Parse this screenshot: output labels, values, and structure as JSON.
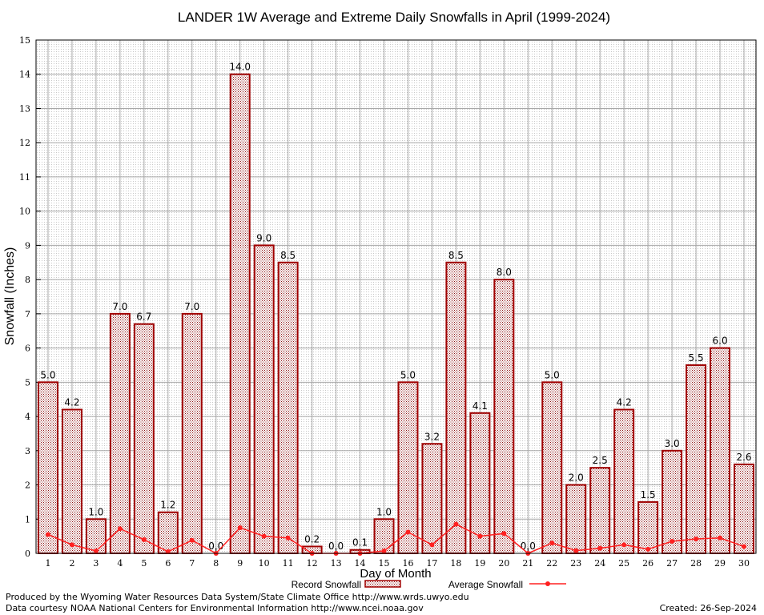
{
  "chart_data": {
    "type": "bar",
    "title": "LANDER 1W Average and Extreme Daily Snowfalls in April (1999-2024)",
    "xlabel": "Day of Month",
    "ylabel": "Snowfall (Inches)",
    "ylim": [
      0,
      15
    ],
    "yticks": [
      "0",
      "1",
      "2",
      "3",
      "4",
      "5",
      "6",
      "7",
      "8",
      "9",
      "10",
      "11",
      "12",
      "13",
      "14",
      "15"
    ],
    "categories": [
      "1",
      "2",
      "3",
      "4",
      "5",
      "6",
      "7",
      "8",
      "9",
      "10",
      "11",
      "12",
      "13",
      "14",
      "15",
      "16",
      "17",
      "18",
      "19",
      "20",
      "21",
      "22",
      "23",
      "24",
      "25",
      "26",
      "27",
      "28",
      "29",
      "30"
    ],
    "series": [
      {
        "name": "Record Snowfall",
        "kind": "bar",
        "values": [
          5.0,
          4.2,
          1.0,
          7.0,
          6.7,
          1.2,
          7.0,
          0.0,
          14.0,
          9.0,
          8.5,
          0.2,
          0.0,
          0.1,
          1.0,
          5.0,
          3.2,
          8.5,
          4.1,
          8.0,
          0.0,
          5.0,
          2.0,
          2.5,
          4.2,
          1.5,
          3.0,
          5.5,
          6.0,
          2.6
        ],
        "labels": [
          "5.0",
          "4.2",
          "1.0",
          "7.0",
          "6.7",
          "1.2",
          "7.0",
          "0.0",
          "14.0",
          "9.0",
          "8.5",
          "0.2",
          "0.0",
          "0.1",
          "1.0",
          "5.0",
          "3.2",
          "8.5",
          "4.1",
          "8.0",
          "0.0",
          "5.0",
          "2.0",
          "2.5",
          "4.2",
          "1.5",
          "3.0",
          "5.5",
          "6.0",
          "2.6"
        ],
        "color": "#a00000"
      },
      {
        "name": "Average Snowfall",
        "kind": "line",
        "values": [
          0.55,
          0.25,
          0.07,
          0.72,
          0.4,
          0.05,
          0.38,
          0.0,
          0.75,
          0.5,
          0.45,
          0.0,
          0.0,
          0.0,
          0.07,
          0.62,
          0.25,
          0.85,
          0.5,
          0.58,
          0.0,
          0.3,
          0.08,
          0.15,
          0.25,
          0.12,
          0.35,
          0.42,
          0.45,
          0.2
        ],
        "color": "#ff2020"
      }
    ],
    "grid": true,
    "legend": "bottom-center"
  },
  "footer": {
    "line1": "Produced by the Wyoming Water Resources Data System/State Climate Office http://www.wrds.uwyo.edu",
    "line2": "Data courtesy NOAA National Centers for Environmental Information http://www.ncei.noaa.gov",
    "created": "Created:  26-Sep-2024"
  }
}
